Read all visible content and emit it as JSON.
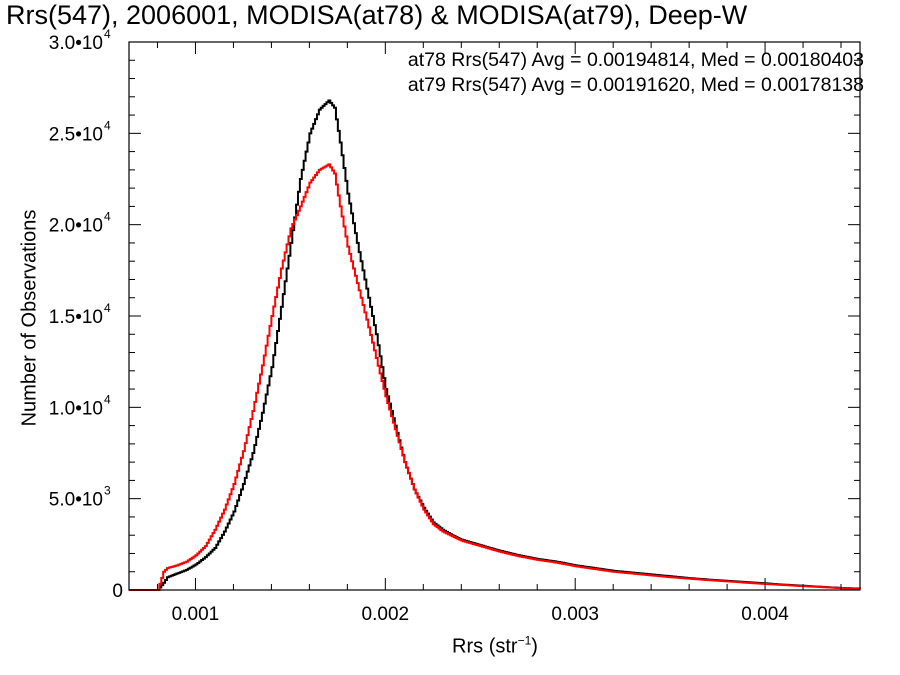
{
  "chart_data": {
    "type": "line",
    "title": "Rrs(547), 2006001, MODISA(at78) & MODISA(at79), Deep-W",
    "xlabel": {
      "base": "Rrs (str",
      "sup": "−1",
      "end": ")"
    },
    "ylabel": "Number of Observations",
    "xlim": [
      0.00065,
      0.0045
    ],
    "ylim": [
      0,
      30000
    ],
    "x_ticks": [
      {
        "value": 0.001,
        "label": "0.001"
      },
      {
        "value": 0.002,
        "label": "0.002"
      },
      {
        "value": 0.003,
        "label": "0.003"
      },
      {
        "value": 0.004,
        "label": "0.004"
      }
    ],
    "y_ticks": [
      {
        "value": 0,
        "mant": "0",
        "exp": ""
      },
      {
        "value": 5000,
        "mant": "5.0•10",
        "exp": "3"
      },
      {
        "value": 10000,
        "mant": "1.0•10",
        "exp": "4"
      },
      {
        "value": 15000,
        "mant": "1.5•10",
        "exp": "4"
      },
      {
        "value": 20000,
        "mant": "2.0•10",
        "exp": "4"
      },
      {
        "value": 25000,
        "mant": "2.5•10",
        "exp": "4"
      },
      {
        "value": 30000,
        "mant": "3.0•10",
        "exp": "4"
      }
    ],
    "grid": false,
    "legend_position": "top-right",
    "series": [
      {
        "name": "at78",
        "label": "at78 Rrs(547) Avg = 0.00194814, Med = 0.00180403",
        "color": "#000000",
        "x": [
          0.00065,
          0.0008,
          0.00083,
          0.00085,
          0.0009,
          0.00095,
          0.001,
          0.00105,
          0.0011,
          0.00115,
          0.0012,
          0.00125,
          0.0013,
          0.00135,
          0.0014,
          0.00145,
          0.0015,
          0.00155,
          0.0016,
          0.00165,
          0.0017,
          0.00173,
          0.00176,
          0.0018,
          0.00185,
          0.0019,
          0.00195,
          0.002,
          0.00205,
          0.0021,
          0.00215,
          0.0022,
          0.00225,
          0.0023,
          0.00235,
          0.0024,
          0.0025,
          0.0026,
          0.0027,
          0.0028,
          0.0029,
          0.003,
          0.0031,
          0.0032,
          0.0033,
          0.0034,
          0.0035,
          0.0036,
          0.0037,
          0.0038,
          0.0039,
          0.004,
          0.0041,
          0.0042,
          0.0043,
          0.0044,
          0.0045
        ],
        "y": [
          0,
          0,
          400,
          700,
          900,
          1100,
          1400,
          1800,
          2300,
          3200,
          4300,
          5800,
          7500,
          9700,
          12200,
          15500,
          19000,
          22500,
          25000,
          26300,
          26800,
          26400,
          24500,
          21700,
          19000,
          16500,
          14000,
          11000,
          9000,
          7000,
          5500,
          4500,
          3700,
          3300,
          3000,
          2750,
          2450,
          2150,
          1900,
          1700,
          1550,
          1350,
          1200,
          1050,
          950,
          850,
          750,
          650,
          570,
          500,
          430,
          360,
          290,
          230,
          170,
          110,
          80
        ]
      },
      {
        "name": "at79",
        "label": "at79 Rrs(547) Avg = 0.00191620, Med = 0.00178138",
        "color": "#ff0000",
        "x": [
          0.00065,
          0.0008,
          0.00083,
          0.00085,
          0.0009,
          0.00095,
          0.001,
          0.00105,
          0.0011,
          0.00115,
          0.0012,
          0.00125,
          0.0013,
          0.00135,
          0.0014,
          0.00145,
          0.0015,
          0.00155,
          0.0016,
          0.00165,
          0.0017,
          0.00173,
          0.00176,
          0.0018,
          0.00185,
          0.0019,
          0.00195,
          0.002,
          0.00205,
          0.0021,
          0.00215,
          0.0022,
          0.00225,
          0.0023,
          0.00235,
          0.0024,
          0.0025,
          0.0026,
          0.0027,
          0.0028,
          0.0029,
          0.003,
          0.0031,
          0.0032,
          0.0033,
          0.0034,
          0.0035,
          0.0036,
          0.0037,
          0.0038,
          0.0039,
          0.004,
          0.0041,
          0.0042,
          0.0043,
          0.0044,
          0.0045
        ],
        "y": [
          0,
          0,
          1000,
          1200,
          1350,
          1550,
          1900,
          2400,
          3300,
          4400,
          5800,
          7600,
          9800,
          12300,
          15000,
          17600,
          19800,
          21000,
          22300,
          23000,
          23300,
          22800,
          21000,
          18800,
          16800,
          14800,
          12700,
          10600,
          8800,
          7000,
          5500,
          4400,
          3600,
          3200,
          2950,
          2700,
          2400,
          2100,
          1850,
          1650,
          1500,
          1300,
          1150,
          1000,
          900,
          800,
          700,
          620,
          540,
          470,
          400,
          330,
          270,
          210,
          160,
          100,
          70
        ]
      }
    ]
  }
}
